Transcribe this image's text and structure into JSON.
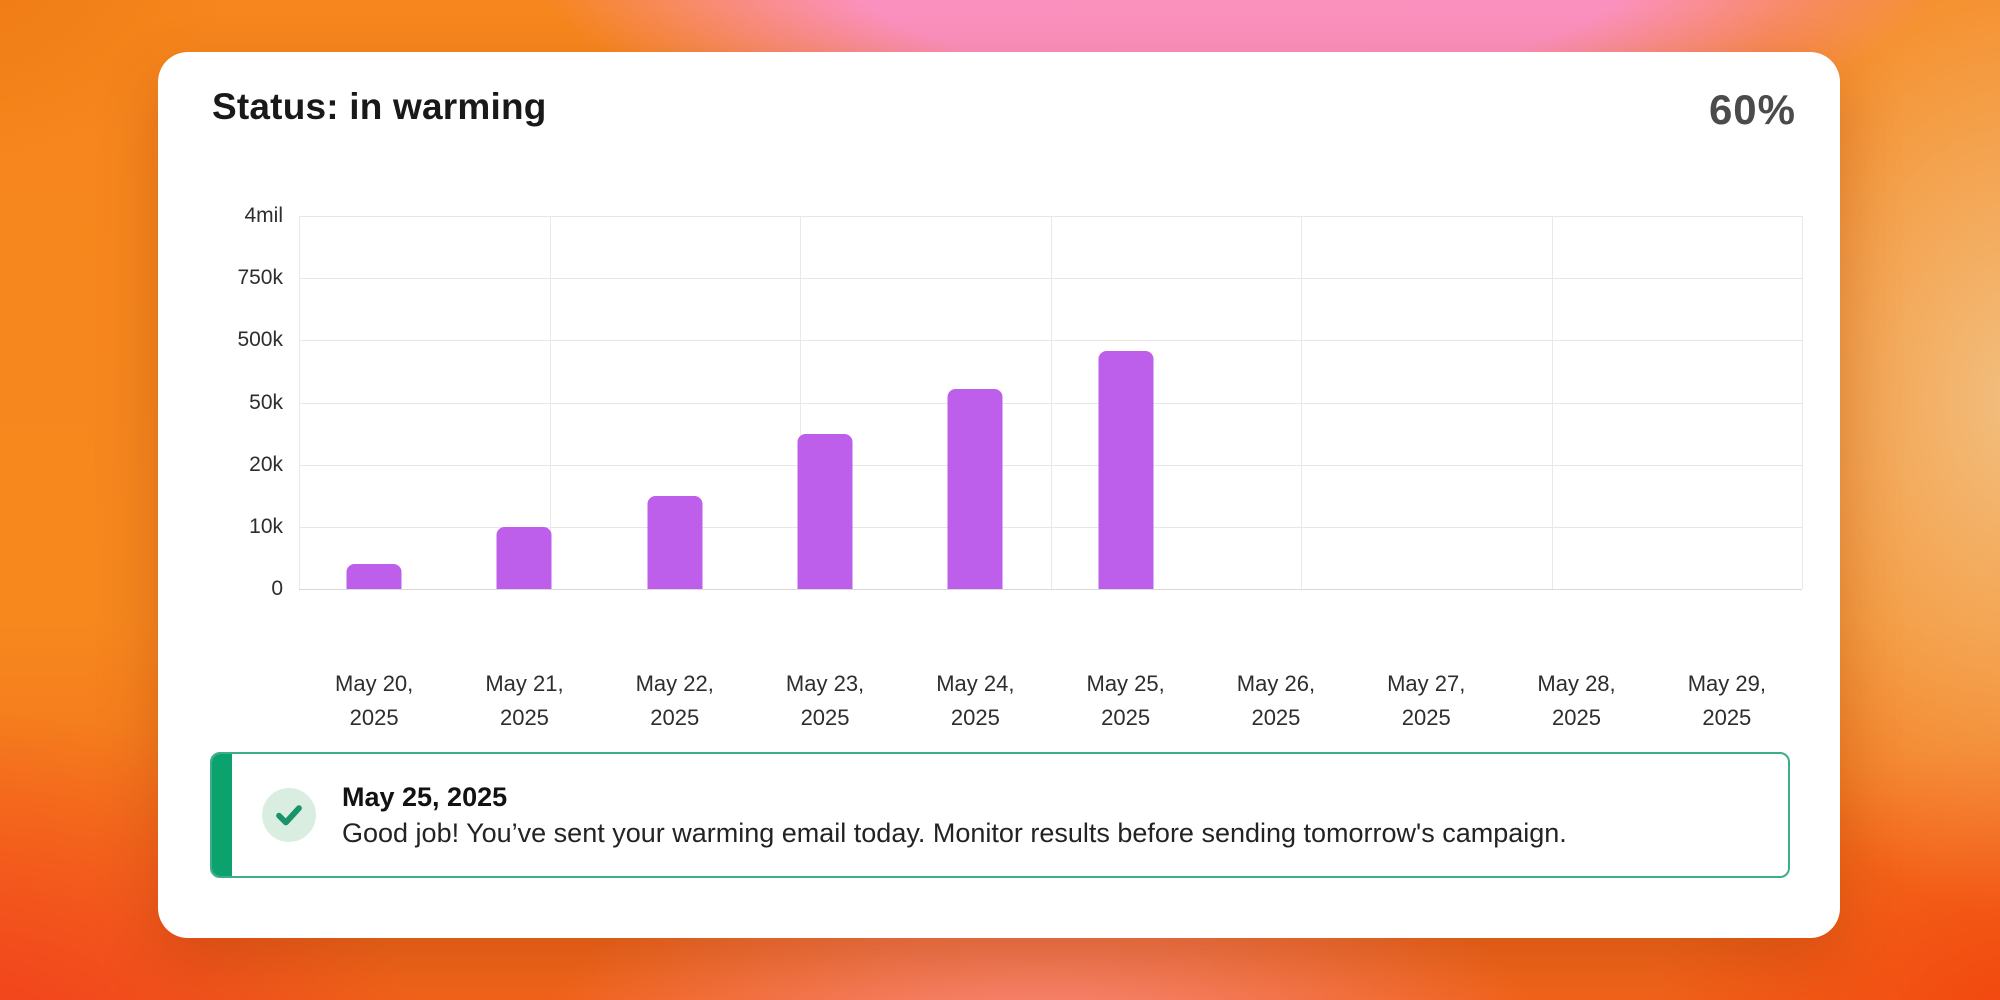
{
  "header": {
    "title": "Status: in warming",
    "progress": "60%"
  },
  "chart_data": {
    "type": "bar",
    "title": "",
    "xlabel": "",
    "ylabel": "",
    "categories": [
      "May 20, 2025",
      "May 21, 2025",
      "May 22, 2025",
      "May 23, 2025",
      "May 24, 2025",
      "May 25, 2025",
      "May 26, 2025",
      "May 27, 2025",
      "May 28, 2025",
      "May 29, 2025"
    ],
    "values": [
      4000,
      10000,
      15000,
      35000,
      150000,
      420000,
      0,
      0,
      0,
      0
    ],
    "y_tick_labels": [
      "0",
      "10k",
      "20k",
      "50k",
      "500k",
      "750k",
      "4mil"
    ],
    "y_tick_values": [
      0,
      10000,
      20000,
      50000,
      500000,
      750000,
      4000000
    ],
    "y_scale": "piecewise-linear-between-ticks",
    "ylim": [
      0,
      4000000
    ],
    "grid": true,
    "vertical_divisions": 6,
    "legend": "none",
    "bar_color": "#be5feb"
  },
  "alert": {
    "date": "May 25, 2025",
    "message": "Good job! You’ve sent your warming email today. Monitor results before sending tomorrow's campaign.",
    "icon": "check-icon"
  },
  "colors": {
    "bar": "#be5feb",
    "alert_border": "#3cae8c",
    "alert_accent": "#0ba26e",
    "badge_background": "#d9eee1",
    "checkmark": "#18936a",
    "card_background": "#ffffff",
    "background_orange": "#f6861d",
    "background_pink": "#fa90bd"
  }
}
